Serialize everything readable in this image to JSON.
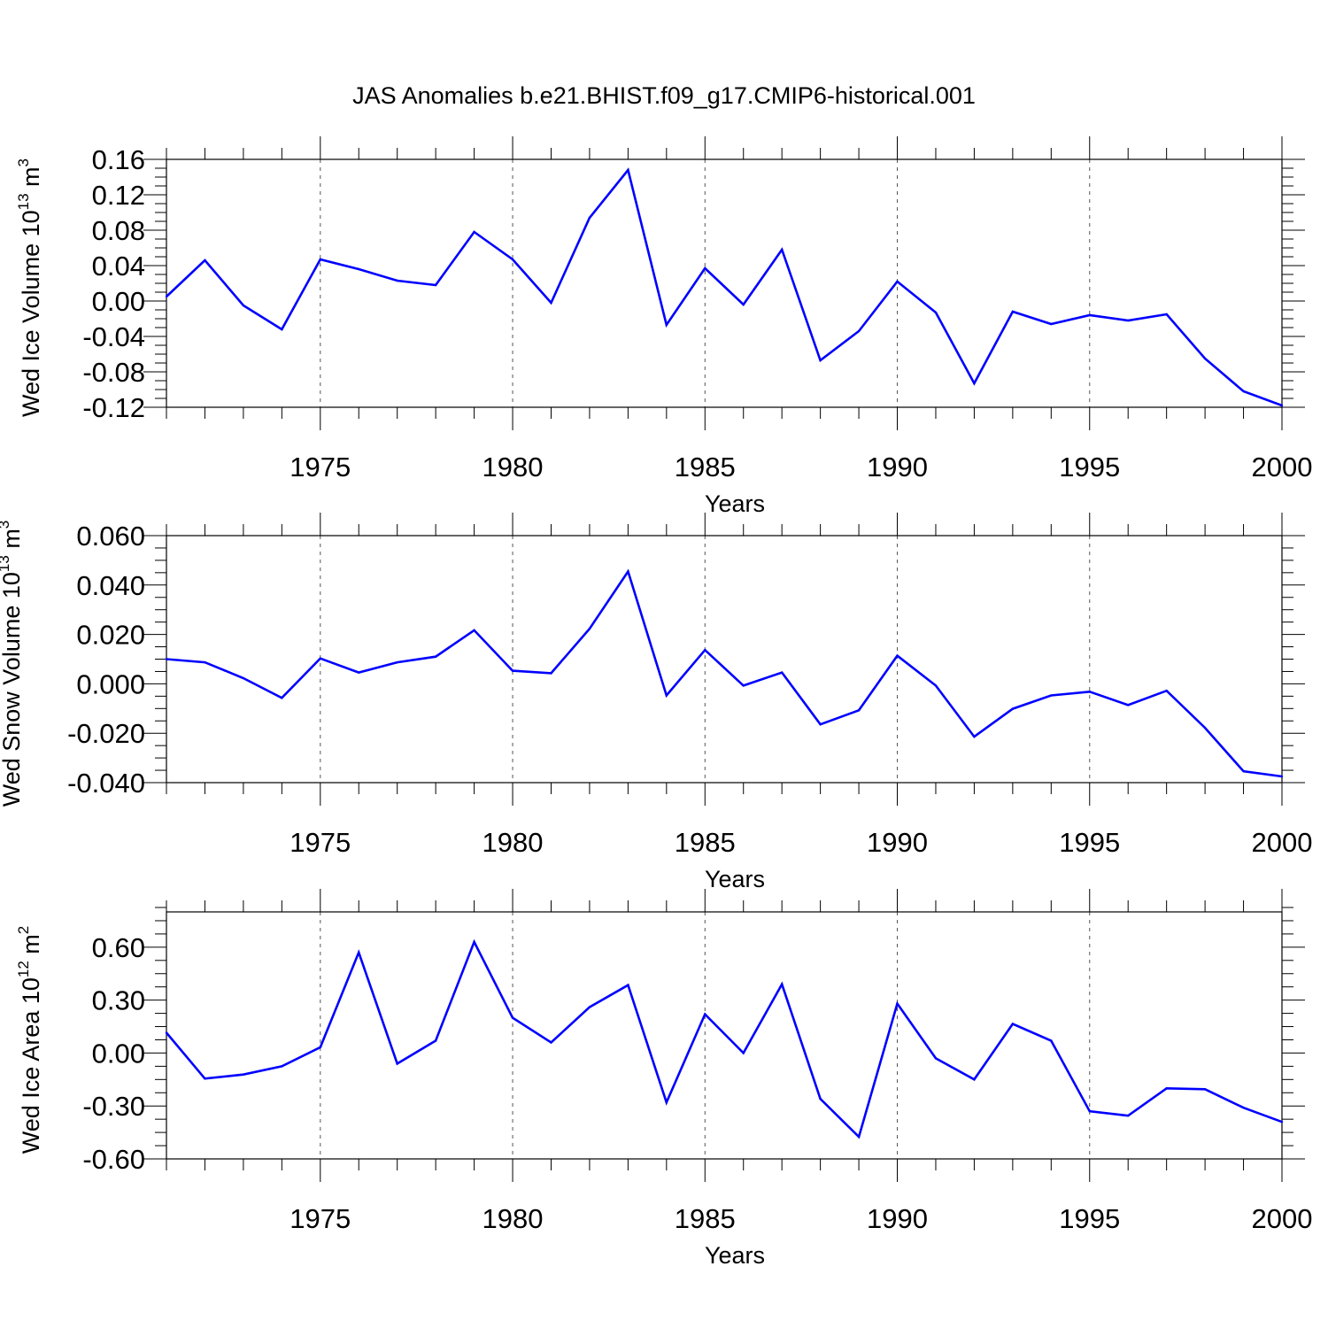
{
  "title": "JAS Anomalies b.e21.BHIST.f09_g17.CMIP6-historical.001",
  "chart_data": [
    {
      "type": "line",
      "ylabel": {
        "base": "Wed Ice Volume 10",
        "exp": "13",
        "unit": " m",
        "unit_exp": "3"
      },
      "xlabel": "Years",
      "xlim": [
        1971,
        2000
      ],
      "ylim": [
        -0.12,
        0.16
      ],
      "yticks": [
        "0.16",
        "0.12",
        "0.08",
        "0.04",
        "0.00",
        "-0.04",
        "-0.08",
        "-0.12"
      ],
      "ytick_values": [
        0.16,
        0.12,
        0.08,
        0.04,
        0.0,
        -0.04,
        -0.08,
        -0.12
      ],
      "xticks": [
        "1975",
        "1980",
        "1985",
        "1990",
        "1995",
        "2000"
      ],
      "xtick_values": [
        1975,
        1980,
        1985,
        1990,
        1995,
        2000
      ],
      "grid": "dashed vertical at major x ticks",
      "color": "#0000ff",
      "x": [
        1971,
        1972,
        1973,
        1974,
        1975,
        1976,
        1977,
        1978,
        1979,
        1980,
        1981,
        1982,
        1983,
        1984,
        1985,
        1986,
        1987,
        1988,
        1989,
        1990,
        1991,
        1992,
        1993,
        1994,
        1995,
        1996,
        1997,
        1998,
        1999,
        2000
      ],
      "values": [
        0.005,
        0.046,
        -0.005,
        -0.032,
        0.047,
        0.036,
        0.023,
        0.018,
        0.078,
        0.047,
        -0.002,
        0.094,
        0.148,
        -0.027,
        0.037,
        -0.004,
        0.058,
        -0.067,
        -0.034,
        0.022,
        -0.013,
        -0.093,
        -0.012,
        -0.026,
        -0.016,
        -0.022,
        -0.015,
        -0.065,
        -0.102,
        -0.118
      ]
    },
    {
      "type": "line",
      "ylabel": {
        "base": "Wed Snow Volume 10",
        "exp": "13",
        "unit": " m",
        "unit_exp": "3"
      },
      "xlabel": "Years",
      "xlim": [
        1971,
        2000
      ],
      "ylim": [
        -0.04,
        0.06
      ],
      "yticks": [
        "0.060",
        "0.040",
        "0.020",
        "0.000",
        "-0.020",
        "-0.040"
      ],
      "ytick_values": [
        0.06,
        0.04,
        0.02,
        0.0,
        -0.02,
        -0.04
      ],
      "xticks": [
        "1975",
        "1980",
        "1985",
        "1990",
        "1995",
        "2000"
      ],
      "xtick_values": [
        1975,
        1980,
        1985,
        1990,
        1995,
        2000
      ],
      "grid": "dashed vertical at major x ticks",
      "color": "#0000ff",
      "x": [
        1971,
        1972,
        1973,
        1974,
        1975,
        1976,
        1977,
        1978,
        1979,
        1980,
        1981,
        1982,
        1983,
        1984,
        1985,
        1986,
        1987,
        1988,
        1989,
        1990,
        1991,
        1992,
        1993,
        1994,
        1995,
        1996,
        1997,
        1998,
        1999,
        2000
      ],
      "values": [
        0.01,
        0.0087,
        0.0023,
        -0.0057,
        0.0103,
        0.0046,
        0.0087,
        0.011,
        0.0217,
        0.0053,
        0.0043,
        0.0223,
        0.0455,
        -0.0047,
        0.0137,
        -0.0007,
        0.0046,
        -0.0164,
        -0.0107,
        0.0114,
        -0.0007,
        -0.0214,
        -0.0101,
        -0.0047,
        -0.0032,
        -0.0086,
        -0.0028,
        -0.0178,
        -0.0354,
        -0.0375
      ]
    },
    {
      "type": "line",
      "ylabel": {
        "base": "Wed Ice Area 10",
        "exp": "12",
        "unit": " m",
        "unit_exp": "2"
      },
      "xlabel": "Years",
      "xlim": [
        1971,
        2000
      ],
      "ylim": [
        -0.6,
        0.8
      ],
      "yticks": [
        "0.60",
        "0.30",
        "0.00",
        "-0.30",
        "-0.60"
      ],
      "ytick_values": [
        0.6,
        0.3,
        0.0,
        -0.3,
        -0.6
      ],
      "xticks": [
        "1975",
        "1980",
        "1985",
        "1990",
        "1995",
        "2000"
      ],
      "xtick_values": [
        1975,
        1980,
        1985,
        1990,
        1995,
        2000
      ],
      "grid": "dashed vertical at major x ticks",
      "color": "#0000ff",
      "x": [
        1971,
        1972,
        1973,
        1974,
        1975,
        1976,
        1977,
        1978,
        1979,
        1980,
        1981,
        1982,
        1983,
        1984,
        1985,
        1986,
        1987,
        1988,
        1989,
        1990,
        1991,
        1992,
        1993,
        1994,
        1995,
        1996,
        1997,
        1998,
        1999,
        2000
      ],
      "values": [
        0.115,
        -0.145,
        -0.122,
        -0.075,
        0.033,
        0.57,
        -0.06,
        0.07,
        0.63,
        0.2,
        0.06,
        0.26,
        0.385,
        -0.28,
        0.22,
        0.0,
        0.39,
        -0.26,
        -0.475,
        0.28,
        -0.03,
        -0.15,
        0.165,
        0.07,
        -0.33,
        -0.355,
        -0.2,
        -0.205,
        -0.31,
        -0.39
      ]
    }
  ]
}
